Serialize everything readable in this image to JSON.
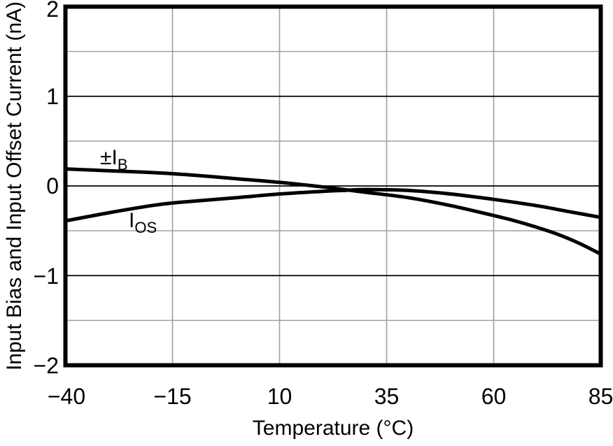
{
  "chart_data": {
    "type": "line",
    "title": "",
    "xlabel": "Temperature (°C)",
    "ylabel": "Input Bias and Input Offset Current (nA)",
    "xlim": [
      -40,
      85
    ],
    "ylim": [
      -2,
      2
    ],
    "x_ticks": [
      -40,
      -15,
      10,
      35,
      60,
      85
    ],
    "x_tick_labels": [
      "−40",
      "−15",
      "10",
      "35",
      "60",
      "85"
    ],
    "y_ticks": [
      2,
      1,
      0,
      -1,
      -2
    ],
    "y_tick_labels": [
      "2",
      "1",
      "0",
      "−1",
      "−2"
    ],
    "y_minor_ticks": [
      1.5,
      0.5,
      -0.5,
      -1.5
    ],
    "grid": "vertical and minor horizontal gridlines gray; major horizontal gridlines black; no tick marks outside axes",
    "legend_position": "inline-curve-labels",
    "series": [
      {
        "name": "±IB",
        "label": {
          "main": "±I",
          "sub": "B"
        },
        "x": [
          -40,
          -30,
          -20,
          -10,
          0,
          10,
          20,
          25,
          30,
          40,
          50,
          60,
          65,
          70,
          75,
          80,
          85
        ],
        "values": [
          0.19,
          0.17,
          0.15,
          0.12,
          0.08,
          0.04,
          -0.01,
          -0.04,
          -0.07,
          -0.13,
          -0.22,
          -0.33,
          -0.39,
          -0.46,
          -0.54,
          -0.64,
          -0.76
        ]
      },
      {
        "name": "IOS",
        "label": {
          "main": "I",
          "sub": "OS"
        },
        "x": [
          -40,
          -30,
          -20,
          -15,
          -10,
          0,
          10,
          20,
          25,
          30,
          40,
          50,
          60,
          70,
          78,
          85
        ],
        "values": [
          -0.39,
          -0.3,
          -0.22,
          -0.19,
          -0.17,
          -0.13,
          -0.09,
          -0.06,
          -0.05,
          -0.04,
          -0.05,
          -0.09,
          -0.15,
          -0.22,
          -0.29,
          -0.35
        ]
      }
    ],
    "colors": {
      "curve": "#000000",
      "axis_frame": "#000000",
      "grid_major_h": "#000000",
      "grid_minor": "#a0a0a0",
      "grid_vertical": "#a0a0a0",
      "background": "#ffffff",
      "text": "#000000"
    }
  }
}
